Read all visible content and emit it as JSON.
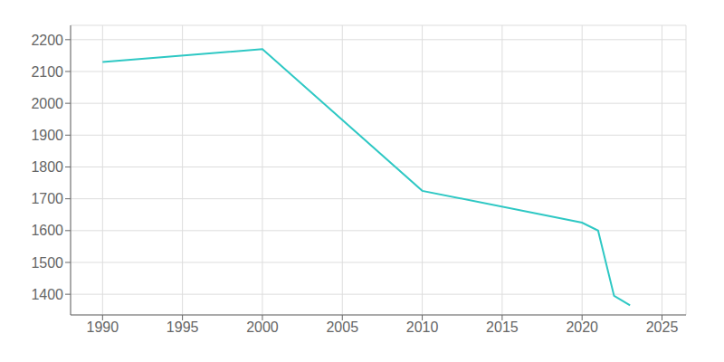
{
  "chart_data": {
    "type": "line",
    "x": [
      1990,
      2000,
      2010,
      2020,
      2021,
      2022,
      2023
    ],
    "values": [
      2130,
      2170,
      1725,
      1625,
      1600,
      1395,
      1365
    ],
    "color": "#2ec8c4",
    "xlim": [
      1988,
      2026.5
    ],
    "ylim": [
      1335,
      2245
    ],
    "xticks": [
      1990,
      1995,
      2000,
      2005,
      2010,
      2015,
      2020,
      2025
    ],
    "yticks": [
      1400,
      1500,
      1600,
      1700,
      1800,
      1900,
      2000,
      2100,
      2200
    ],
    "grid": true
  }
}
